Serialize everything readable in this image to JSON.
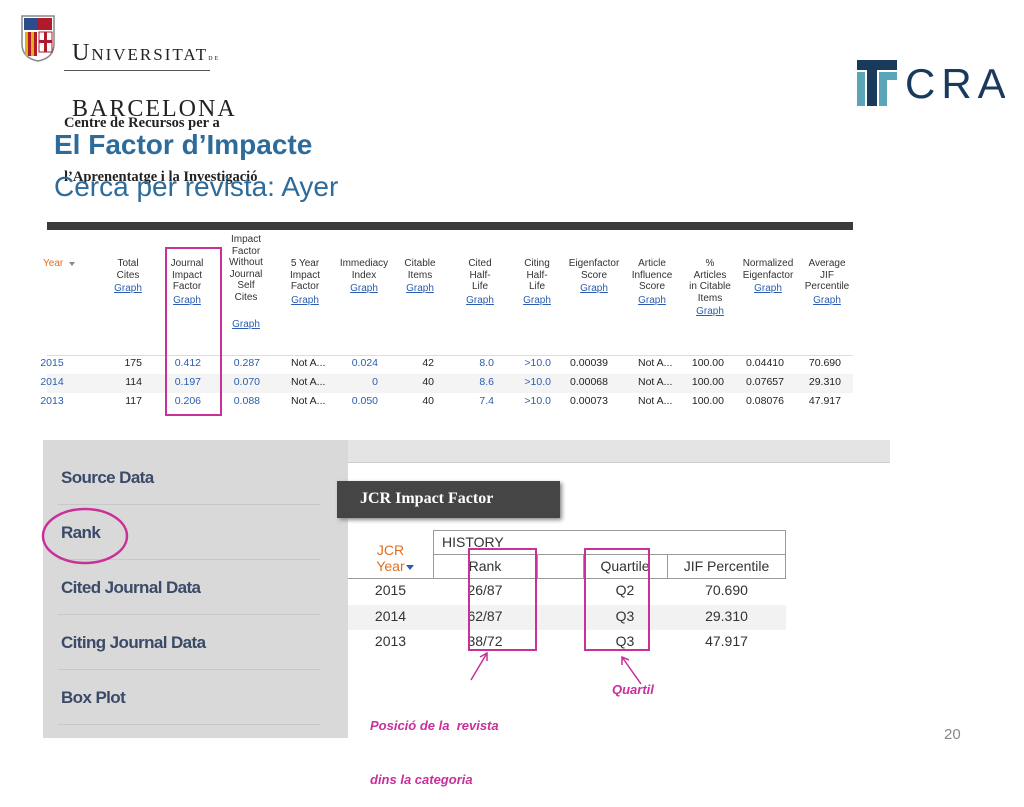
{
  "header": {
    "university": [
      "Universitat",
      "de",
      "Barcelona"
    ],
    "centre": [
      "Centre de Recursos per a",
      "l’Aprenentatge i la Investigació"
    ],
    "logo": "CRAI"
  },
  "title": "El Factor d’Impacte",
  "subtitle": "Cerca per revista: Ayer",
  "table": {
    "headers": [
      {
        "lines": [
          "Year"
        ]
      },
      {
        "lines": [
          "Total",
          "Cites"
        ],
        "link": "Graph"
      },
      {
        "lines": [
          "Journal",
          "Impact",
          "Factor"
        ],
        "link": "Graph"
      },
      {
        "lines": [
          "Impact",
          "Factor",
          "Without",
          "Journal",
          "Self",
          "Cites"
        ],
        "link": "Graph"
      },
      {
        "lines": [
          "5 Year",
          "Impact",
          "Factor"
        ],
        "link": "Graph"
      },
      {
        "lines": [
          "Immediacy",
          "Index"
        ],
        "link": "Graph"
      },
      {
        "lines": [
          "Citable",
          "Items"
        ],
        "link": "Graph"
      },
      {
        "lines": [
          "Cited",
          "Half-",
          "Life"
        ],
        "link": "Graph"
      },
      {
        "lines": [
          "Citing",
          "Half-",
          "Life"
        ],
        "link": "Graph"
      },
      {
        "lines": [
          "Eigenfactor",
          "Score"
        ],
        "link": "Graph"
      },
      {
        "lines": [
          "Article",
          "Influence",
          "Score"
        ],
        "link": "Graph"
      },
      {
        "lines": [
          "%",
          "Articles",
          "in Citable",
          "Items"
        ],
        "link": "Graph"
      },
      {
        "lines": [
          "Normalized",
          "Eigenfactor"
        ],
        "link": "Graph"
      },
      {
        "lines": [
          "Average",
          "JIF",
          "Percentile"
        ],
        "link": "Graph"
      }
    ],
    "rows": [
      [
        "2015",
        "175",
        "0.412",
        "0.287",
        "Not A...",
        "0.024",
        "42",
        "8.0",
        ">10.0",
        "0.00039",
        "Not A...",
        "100.00",
        "0.04410",
        "70.690"
      ],
      [
        "2014",
        "114",
        "0.197",
        "0.070",
        "Not A...",
        "0",
        "40",
        "8.6",
        ">10.0",
        "0.00068",
        "Not A...",
        "100.00",
        "0.07657",
        "29.310"
      ],
      [
        "2013",
        "117",
        "0.206",
        "0.088",
        "Not A...",
        "0.050",
        "40",
        "7.4",
        ">10.0",
        "0.00073",
        "Not A...",
        "100.00",
        "0.08076",
        "47.917"
      ]
    ]
  },
  "sidebar": [
    "Source Data",
    "Rank",
    "Cited Journal Data",
    "Citing Journal Data",
    "Box Plot"
  ],
  "tab": "JCR Impact Factor",
  "history": {
    "caption": "HISTORY",
    "headers": [
      [
        "JCR",
        "Year"
      ],
      "Rank",
      "",
      "Quartile",
      "JIF Percentile"
    ],
    "rows": [
      [
        "2015",
        "26/87",
        "",
        "Q2",
        "70.690"
      ],
      [
        "2014",
        "62/87",
        "",
        "Q3",
        "29.310"
      ],
      [
        "2013",
        "38/72",
        "",
        "Q3",
        "47.917"
      ]
    ]
  },
  "annotations": [
    [
      "Posició de la  revista",
      "dins la categoria"
    ],
    "Quartil"
  ],
  "page_number": "20"
}
